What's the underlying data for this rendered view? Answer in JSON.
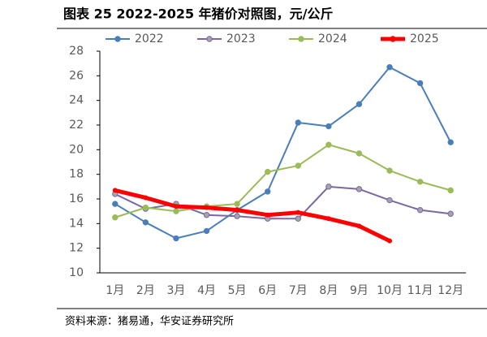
{
  "chart_data": {
    "type": "line",
    "title": "图表 25 2022-2025 年猪价对照图，元/公斤",
    "source": "资料来源：猪易通，华安证券研究所",
    "categories": [
      "1月",
      "2月",
      "3月",
      "4月",
      "5月",
      "6月",
      "7月",
      "8月",
      "9月",
      "10月",
      "11月",
      "12月"
    ],
    "series": [
      {
        "name": "2022",
        "color": "#4a7ebb",
        "width": 2,
        "values": [
          15.6,
          14.1,
          12.8,
          13.4,
          15.1,
          16.6,
          22.2,
          21.9,
          23.7,
          26.7,
          25.4,
          20.6
        ]
      },
      {
        "name": "2023",
        "color": "#7a67a3",
        "width": 2,
        "values": [
          16.4,
          15.2,
          15.6,
          14.7,
          14.6,
          14.4,
          14.4,
          17.0,
          16.8,
          15.9,
          15.1,
          14.8
        ]
      },
      {
        "name": "2024",
        "color": "#9bbb59",
        "width": 2,
        "values": [
          14.5,
          15.3,
          15.0,
          15.4,
          15.6,
          18.2,
          18.7,
          20.4,
          19.7,
          18.3,
          17.4,
          16.7
        ]
      },
      {
        "name": "2025",
        "color": "#ff0000",
        "width": 5,
        "values": [
          16.7,
          16.1,
          15.4,
          15.3,
          15.1,
          14.7,
          14.9,
          14.4,
          13.8,
          12.6,
          null,
          null
        ]
      }
    ],
    "ylim": [
      10,
      28
    ],
    "yticks": [
      10,
      12,
      14,
      16,
      18,
      20,
      22,
      24,
      26,
      28
    ],
    "grid": false,
    "legend": "top"
  }
}
